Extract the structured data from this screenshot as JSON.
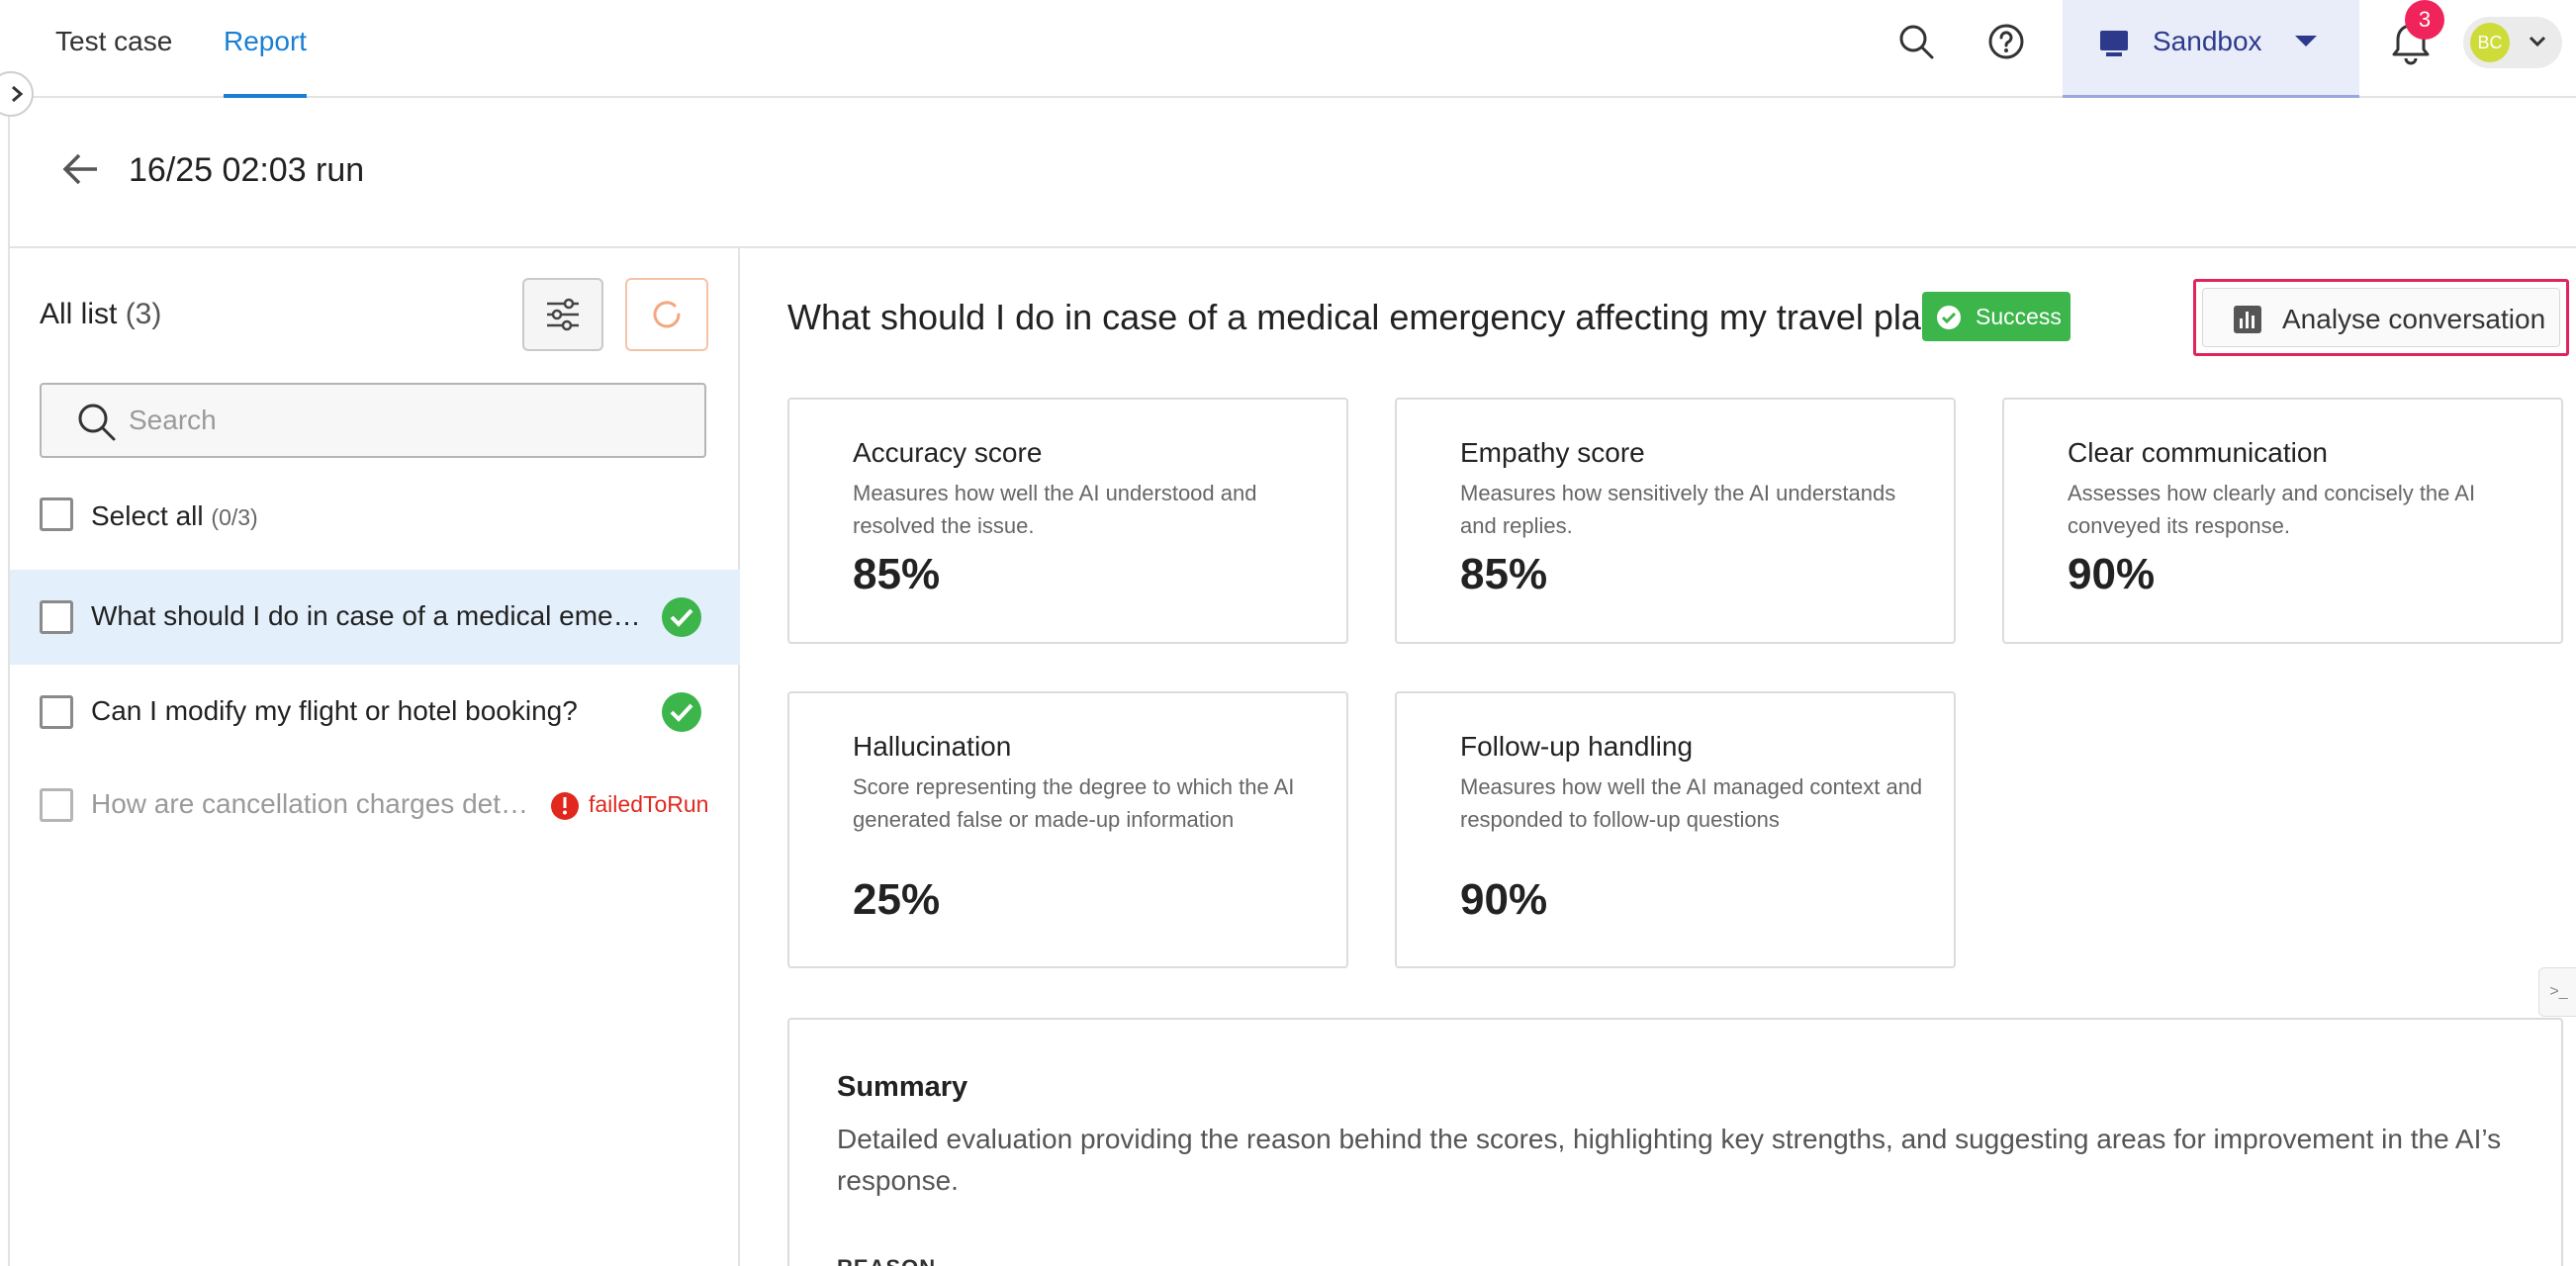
{
  "nav": {
    "tabs": [
      {
        "label": "Test case",
        "active": false
      },
      {
        "label": "Report",
        "active": true
      }
    ],
    "workspace": "Sandbox",
    "notification_count": "3",
    "user_initials": "BC",
    "icons": [
      "search-icon",
      "help-icon",
      "monitor-icon",
      "bell-icon",
      "chevron-down-icon"
    ]
  },
  "run": {
    "title": "16/25 02:03 run"
  },
  "list": {
    "title": "All list",
    "count": "(3)",
    "search_placeholder": "Search",
    "select_all_label": "Select all",
    "select_all_count": "(0/3)",
    "items": [
      {
        "text": "What should I do in case of a medical emergency affecting my travel plans?",
        "status": "success",
        "selected": true
      },
      {
        "text": "Can I modify my flight or hotel booking?",
        "status": "success",
        "selected": false
      },
      {
        "text": "How are cancellation charges determined?",
        "status": "failedToRun",
        "status_label": "failedToRun",
        "selected": false
      }
    ]
  },
  "detail": {
    "question": "What should I do in case of a medical emergency affecting my travel plans?",
    "status_label": "Success",
    "analyse_label": "Analyse conversation",
    "metrics": [
      {
        "title": "Accuracy score",
        "description": "Measures how well the AI understood and resolved the issue.",
        "value": "85%"
      },
      {
        "title": "Empathy score",
        "description": "Measures how sensitively the AI understands and replies.",
        "value": "85%"
      },
      {
        "title": "Clear communication",
        "description": "Assesses how clearly and concisely the AI conveyed its response.",
        "value": "90%"
      },
      {
        "title": "Hallucination",
        "description": "Score representing the degree to which the AI generated false or made-up information",
        "value": "25%"
      },
      {
        "title": "Follow-up handling",
        "description": "Measures how well the AI managed context and responded to follow-up questions",
        "value": "90%"
      }
    ],
    "summary": {
      "title": "Summary",
      "description": "Detailed evaluation providing the reason behind the scores, highlighting key strengths, and suggesting areas for improvement in the AI’s response.",
      "reason_label": "REASON"
    }
  },
  "colors": {
    "accent": "#1a7fd4",
    "success": "#3cb54a",
    "error": "#e0281e",
    "badge": "#f0245a",
    "highlight_border": "#e0245e",
    "selected_row": "#e3f0fb",
    "sandbox_bg": "#e9ecf9"
  }
}
